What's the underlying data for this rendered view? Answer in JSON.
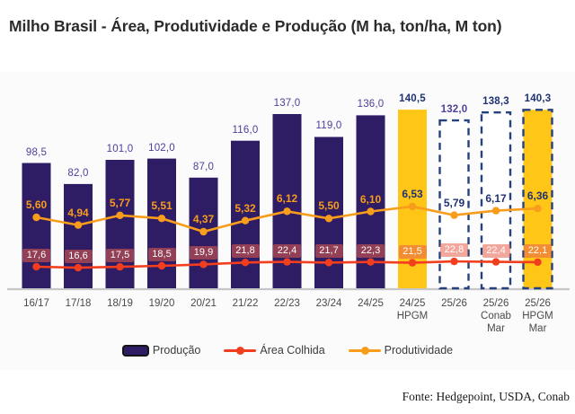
{
  "title": "Milho Brasil - Área, Produtividade e Produção (M ha, ton/ha, M ton)",
  "footer": "Fonte: Hedgepoint, USDA, Conab",
  "colors": {
    "purple": "#2E1C64",
    "yellow": "#FFC517",
    "white": "#FFFFFF",
    "dash_border": "#25427C",
    "area_line": "#F23E1E",
    "prod_line": "#F89C1C",
    "label_purple": "#4C3F99",
    "label_navy": "#1F3272",
    "label_orange": "#F89C1C",
    "area_box": "rgba(231,95,75,0.55)",
    "axis_line": "#C6C6C6"
  },
  "legend": [
    {
      "key": "producao",
      "label": "Produção",
      "type": "bar",
      "color": "#2E1C64"
    },
    {
      "key": "area-colhida",
      "label": "Área Colhida",
      "type": "line",
      "color": "#F23E1E"
    },
    {
      "key": "produtividade",
      "label": "Produtividade",
      "type": "line",
      "color": "#F89C1C"
    }
  ],
  "chart_data": {
    "type": "bar",
    "title": "Milho Brasil - Área, Produtividade e Produção (M ha, ton/ha, M ton)",
    "categories": [
      [
        "16/17"
      ],
      [
        "17/18"
      ],
      [
        "18/19"
      ],
      [
        "19/20"
      ],
      [
        "20/21"
      ],
      [
        "21/22"
      ],
      [
        "22/23"
      ],
      [
        "23/24"
      ],
      [
        "24/25"
      ],
      [
        "24/25",
        "HPGM"
      ],
      [
        "25/26"
      ],
      [
        "25/26",
        "Conab",
        "Mar"
      ],
      [
        "25/26",
        "HPGM",
        "Mar"
      ]
    ],
    "layout": {
      "grid": false,
      "y_axis_visible": false,
      "legend_position": "bottom"
    },
    "series": [
      {
        "name": "Produção",
        "type": "bar",
        "unit": "M ton",
        "values": [
          98.5,
          82.0,
          101.0,
          102.0,
          87.0,
          116.0,
          137.0,
          119.0,
          136.0,
          140.5,
          132.0,
          138.3,
          140.3
        ],
        "labels": [
          "98,5",
          "82,0",
          "101,0",
          "102,0",
          "87,0",
          "116,0",
          "137,0",
          "119,0",
          "136,0",
          "140,5",
          "132,0",
          "138,3",
          "140,3"
        ],
        "bar_styles": [
          {
            "fill": "purple",
            "dashed": false,
            "label": "label_purple",
            "bold": false
          },
          {
            "fill": "purple",
            "dashed": false,
            "label": "label_purple",
            "bold": false
          },
          {
            "fill": "purple",
            "dashed": false,
            "label": "label_purple",
            "bold": false
          },
          {
            "fill": "purple",
            "dashed": false,
            "label": "label_purple",
            "bold": false
          },
          {
            "fill": "purple",
            "dashed": false,
            "label": "label_purple",
            "bold": false
          },
          {
            "fill": "purple",
            "dashed": false,
            "label": "label_purple",
            "bold": false
          },
          {
            "fill": "purple",
            "dashed": false,
            "label": "label_purple",
            "bold": false
          },
          {
            "fill": "purple",
            "dashed": false,
            "label": "label_purple",
            "bold": false
          },
          {
            "fill": "purple",
            "dashed": false,
            "label": "label_purple",
            "bold": false
          },
          {
            "fill": "yellow",
            "dashed": false,
            "label": "label_navy",
            "bold": true
          },
          {
            "fill": "white",
            "dashed": true,
            "label": "label_purple",
            "bold": true
          },
          {
            "fill": "white",
            "dashed": true,
            "label": "label_navy",
            "bold": true
          },
          {
            "fill": "yellow",
            "dashed": true,
            "label": "label_navy",
            "bold": true
          }
        ]
      },
      {
        "name": "Área Colhida",
        "type": "line",
        "unit": "M ha",
        "values": [
          17.6,
          16.6,
          17.5,
          18.5,
          19.9,
          21.8,
          22.4,
          21.7,
          22.3,
          21.5,
          22.8,
          22.4,
          22.1
        ],
        "labels": [
          "17,6",
          "16,6",
          "17,5",
          "18,5",
          "19,9",
          "21,8",
          "22,4",
          "21,7",
          "22,3",
          "21,5",
          "22,8",
          "22,4",
          "22,1"
        ]
      },
      {
        "name": "Produtividade",
        "type": "line",
        "unit": "ton/ha",
        "values": [
          5.6,
          4.94,
          5.77,
          5.51,
          4.37,
          5.32,
          6.12,
          5.5,
          6.1,
          6.53,
          5.79,
          6.17,
          6.36
        ],
        "labels": [
          "5,60",
          "4,94",
          "5,77",
          "5,51",
          "4,37",
          "5,32",
          "6,12",
          "5,50",
          "6,10",
          "6,53",
          "5,79",
          "6,17",
          "6,36"
        ],
        "label_colors_key": [
          "label_orange",
          "label_orange",
          "label_orange",
          "label_orange",
          "label_orange",
          "label_orange",
          "label_orange",
          "label_orange",
          "label_orange",
          "label_navy",
          "label_navy",
          "label_navy",
          "label_navy"
        ]
      }
    ]
  }
}
